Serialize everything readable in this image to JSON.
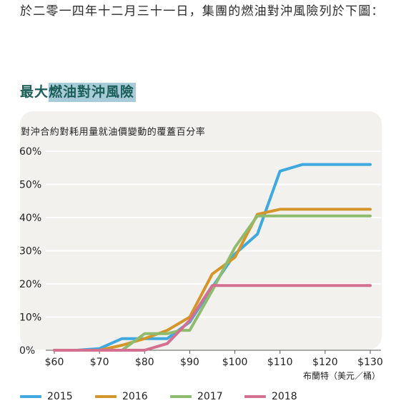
{
  "intro": {
    "text": "於二零一四年十二月三十一日，集團的燃油對沖風險列於下圖："
  },
  "section": {
    "title_prefix": "最大",
    "title_highlight": "燃油對沖風險"
  },
  "colors": {
    "heading": "#1a5e57",
    "highlight": "#a7cbd9",
    "panel": "#f2f1ee",
    "grid": "#ffffff",
    "axis": "#555555"
  },
  "chart_data": {
    "type": "line",
    "title": "對沖合約對耗用量就油價變動的覆蓋百分率",
    "xlabel": "布蘭特（美元／桶）",
    "ylabel": "",
    "x": [
      60,
      65,
      70,
      75,
      80,
      85,
      90,
      95,
      100,
      105,
      110,
      115,
      120,
      125,
      130
    ],
    "xlim": [
      60,
      130
    ],
    "ylim": [
      0,
      60
    ],
    "x_ticks": [
      "$60",
      "$70",
      "$80",
      "$90",
      "$100",
      "$110",
      "$120",
      "$130"
    ],
    "x_tick_values": [
      60,
      70,
      80,
      90,
      100,
      110,
      120,
      130
    ],
    "y_ticks": [
      "0%",
      "10%",
      "20%",
      "30%",
      "40%",
      "50%",
      "60%"
    ],
    "y_tick_values": [
      0,
      10,
      20,
      30,
      40,
      50,
      60
    ],
    "grid": true,
    "legend_position": "bottom",
    "series": [
      {
        "name": "2015",
        "color": "#3fa9df",
        "points": [
          [
            60,
            0
          ],
          [
            65,
            0
          ],
          [
            70,
            0.5
          ],
          [
            75,
            3.5
          ],
          [
            80,
            3.5
          ],
          [
            85,
            3.5
          ],
          [
            90,
            8.5
          ],
          [
            95,
            19
          ],
          [
            100,
            29
          ],
          [
            105,
            35
          ],
          [
            110,
            54
          ],
          [
            115,
            56
          ],
          [
            120,
            56
          ],
          [
            125,
            56
          ],
          [
            130,
            56
          ]
        ]
      },
      {
        "name": "2016",
        "color": "#d4962a",
        "points": [
          [
            60,
            0
          ],
          [
            65,
            0
          ],
          [
            70,
            0
          ],
          [
            75,
            1.5
          ],
          [
            80,
            3.5
          ],
          [
            85,
            6
          ],
          [
            90,
            10
          ],
          [
            95,
            23
          ],
          [
            100,
            28
          ],
          [
            105,
            41
          ],
          [
            110,
            42.5
          ],
          [
            115,
            42.5
          ],
          [
            120,
            42.5
          ],
          [
            125,
            42.5
          ],
          [
            130,
            42.5
          ]
        ]
      },
      {
        "name": "2017",
        "color": "#8fbb6e",
        "points": [
          [
            60,
            0
          ],
          [
            65,
            0
          ],
          [
            70,
            0
          ],
          [
            75,
            0
          ],
          [
            80,
            5
          ],
          [
            85,
            5
          ],
          [
            88,
            6
          ],
          [
            90,
            6
          ],
          [
            95,
            18
          ],
          [
            100,
            31
          ],
          [
            105,
            40.5
          ],
          [
            110,
            40.5
          ],
          [
            115,
            40.5
          ],
          [
            120,
            40.5
          ],
          [
            125,
            40.5
          ],
          [
            130,
            40.5
          ]
        ]
      },
      {
        "name": "2018",
        "color": "#d4708f",
        "points": [
          [
            60,
            0
          ],
          [
            65,
            0
          ],
          [
            70,
            0
          ],
          [
            75,
            0
          ],
          [
            80,
            0
          ],
          [
            85,
            2
          ],
          [
            90,
            9
          ],
          [
            95,
            19.5
          ],
          [
            100,
            19.5
          ],
          [
            105,
            19.5
          ],
          [
            110,
            19.5
          ],
          [
            115,
            19.5
          ],
          [
            120,
            19.5
          ],
          [
            125,
            19.5
          ],
          [
            130,
            19.5
          ]
        ]
      }
    ]
  }
}
